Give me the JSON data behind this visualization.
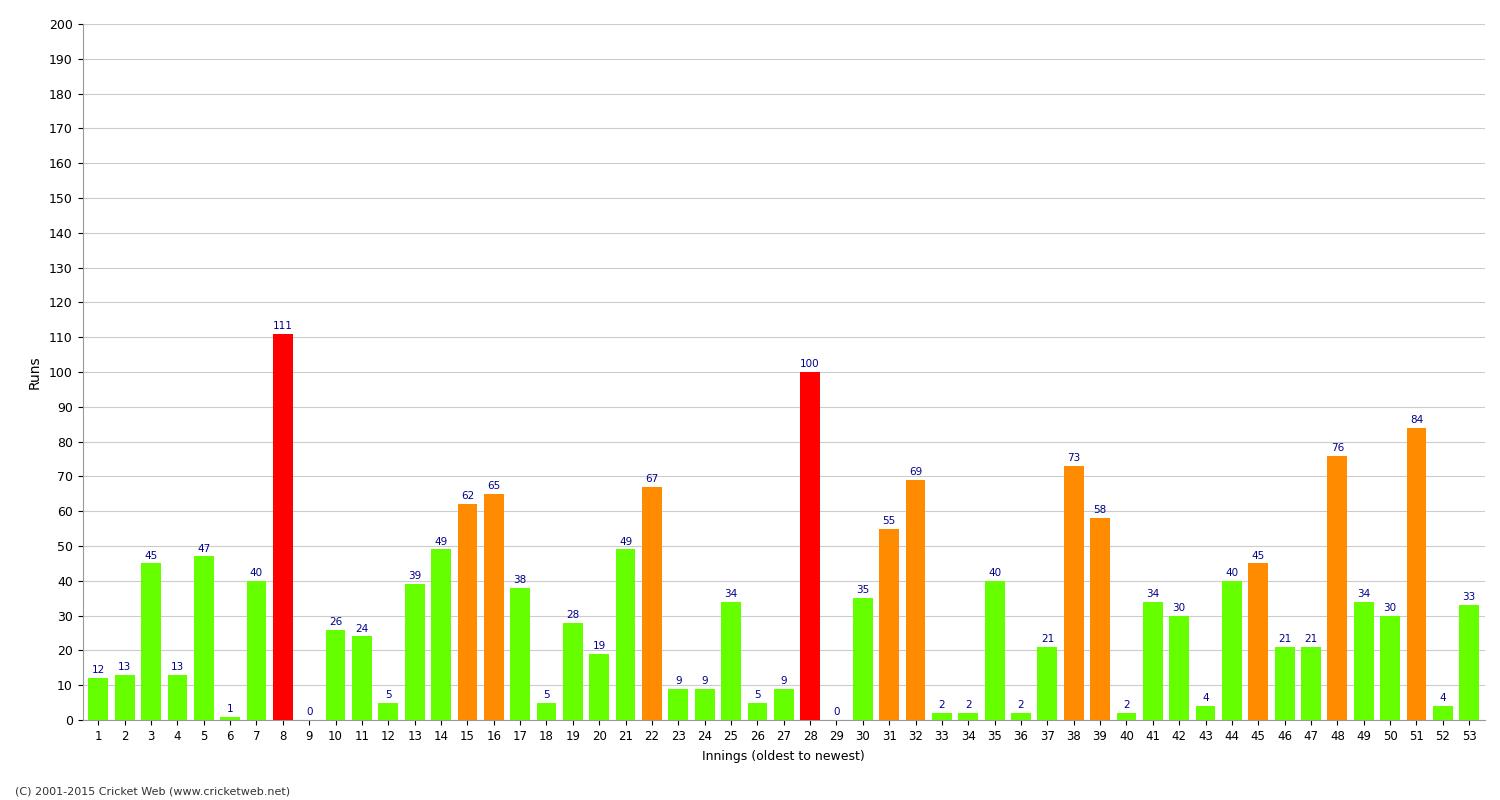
{
  "xlabel": "Innings (oldest to newest)",
  "ylabel": "Runs",
  "innings": [
    1,
    2,
    3,
    4,
    5,
    6,
    7,
    8,
    9,
    10,
    11,
    12,
    13,
    14,
    15,
    16,
    17,
    18,
    19,
    20,
    21,
    22,
    23,
    24,
    25,
    26,
    27,
    28,
    29,
    30,
    31,
    32,
    33,
    34,
    35,
    36,
    37,
    38,
    39,
    40,
    41,
    42,
    43,
    44,
    45,
    46,
    47,
    48,
    49,
    50,
    51,
    52,
    53
  ],
  "scores": [
    12,
    13,
    45,
    13,
    47,
    1,
    40,
    111,
    0,
    26,
    24,
    5,
    39,
    49,
    62,
    65,
    38,
    5,
    28,
    19,
    49,
    67,
    9,
    9,
    34,
    5,
    9,
    100,
    0,
    35,
    55,
    69,
    2,
    2,
    40,
    2,
    21,
    73,
    58,
    2,
    34,
    30,
    4,
    40,
    45,
    21,
    21,
    76,
    34,
    30,
    84,
    4,
    33
  ],
  "colors": [
    "#66ff00",
    "#66ff00",
    "#66ff00",
    "#66ff00",
    "#66ff00",
    "#66ff00",
    "#66ff00",
    "#ff0000",
    "#66ff00",
    "#66ff00",
    "#66ff00",
    "#66ff00",
    "#66ff00",
    "#66ff00",
    "#ff8c00",
    "#ff8c00",
    "#66ff00",
    "#66ff00",
    "#66ff00",
    "#66ff00",
    "#66ff00",
    "#ff8c00",
    "#66ff00",
    "#66ff00",
    "#66ff00",
    "#66ff00",
    "#66ff00",
    "#ff0000",
    "#66ff00",
    "#66ff00",
    "#ff8c00",
    "#ff8c00",
    "#66ff00",
    "#66ff00",
    "#66ff00",
    "#66ff00",
    "#66ff00",
    "#ff8c00",
    "#ff8c00",
    "#66ff00",
    "#66ff00",
    "#66ff00",
    "#66ff00",
    "#66ff00",
    "#ff8c00",
    "#66ff00",
    "#66ff00",
    "#ff8c00",
    "#66ff00",
    "#66ff00",
    "#ff8c00",
    "#66ff00",
    "#66ff00"
  ],
  "ylim": [
    0,
    200
  ],
  "yticks": [
    0,
    10,
    20,
    30,
    40,
    50,
    60,
    70,
    80,
    90,
    100,
    110,
    120,
    130,
    140,
    150,
    160,
    170,
    180,
    190,
    200
  ],
  "label_color": "#00008b",
  "label_fontsize": 7.5,
  "background_color": "#ffffff",
  "grid_color": "#cccccc",
  "footer": "(C) 2001-2015 Cricket Web (www.cricketweb.net)"
}
